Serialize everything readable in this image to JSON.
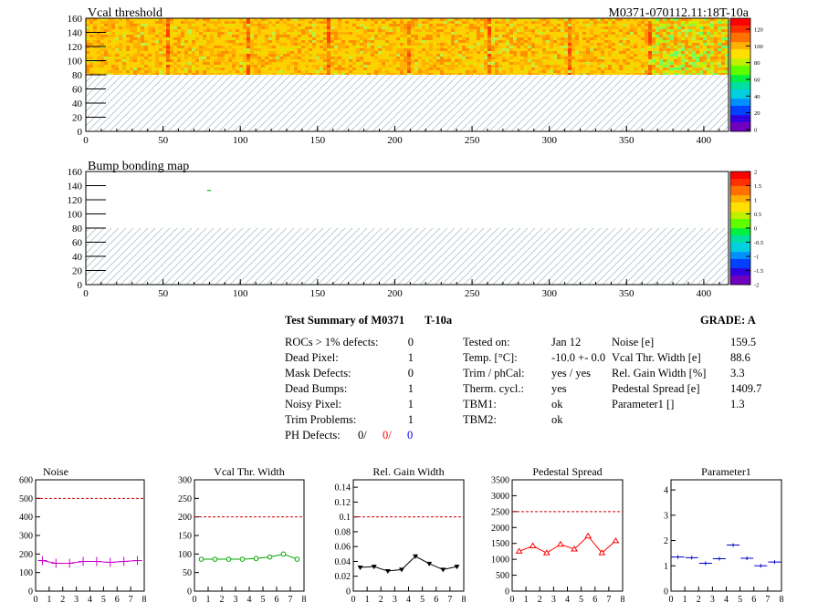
{
  "header": {
    "right_title": "M0371-070112.11:18T-10a"
  },
  "maps": [
    {
      "title": "Vcal threshold",
      "palette_ticks": [
        "0",
        "20",
        "40",
        "60",
        "80",
        "100",
        "120"
      ]
    },
    {
      "title": "Bump bonding map",
      "palette_ticks": [
        "-2",
        "-1.5",
        "-1",
        "-0.5",
        "0",
        "0.5",
        "1",
        "1.5",
        "2"
      ]
    }
  ],
  "map_axes": {
    "x_ticks": [
      "0",
      "50",
      "100",
      "150",
      "200",
      "250",
      "300",
      "350",
      "400"
    ],
    "y_ticks": [
      "0",
      "20",
      "40",
      "60",
      "80",
      "100",
      "120",
      "140",
      "160"
    ],
    "x_range": [
      0,
      416
    ],
    "y_range": [
      0,
      160
    ],
    "roc_boundaries": [
      52,
      104,
      156,
      208,
      260,
      312,
      364
    ],
    "filled_y_range": [
      80,
      160
    ]
  },
  "summary": {
    "title": "Test Summary of M0371",
    "test": "T-10a",
    "grade": "GRADE:  A",
    "left": [
      {
        "label": "ROCs > 1% defects:",
        "value": "0"
      },
      {
        "label": "Dead Pixel:",
        "value": "1"
      },
      {
        "label": "Mask Defects:",
        "value": "0"
      },
      {
        "label": "Dead Bumps:",
        "value": "1"
      },
      {
        "label": "Noisy Pixel:",
        "value": "1"
      },
      {
        "label": "Trim Problems:",
        "value": "1"
      }
    ],
    "ph_defects": {
      "label": "PH Defects:",
      "v1": "0/",
      "v2": "0/",
      "v3": "0",
      "v1_color": "#000000",
      "v2_color": "#ff0000",
      "v3_color": "#0000ff"
    },
    "middle": [
      {
        "label": "Tested on:",
        "value": "Jan 12"
      },
      {
        "label": "Temp. [°C]:",
        "value": "-10.0 +- 0.0"
      },
      {
        "label": "Trim / phCal:",
        "value": "yes / yes"
      },
      {
        "label": "Therm. cycl.:",
        "value": "yes"
      },
      {
        "label": "TBM1:",
        "value": "ok"
      },
      {
        "label": "TBM2:",
        "value": "ok"
      }
    ],
    "right": [
      {
        "label": "Noise [e]",
        "value": "159.5"
      },
      {
        "label": "Vcal Thr. Width [e]",
        "value": "88.6"
      },
      {
        "label": "Rel. Gain Width [%]",
        "value": "3.3"
      },
      {
        "label": "Pedestal Spread [e]",
        "value": "1409.7"
      },
      {
        "label": "Parameter1 []",
        "value": "1.3"
      }
    ]
  },
  "chart_data": [
    {
      "type": "line",
      "title": "",
      "xlabel": "",
      "ylabel": "",
      "panel_label": "Noise",
      "x": [
        0,
        1,
        2,
        3,
        4,
        5,
        6,
        7
      ],
      "values": [
        165,
        150,
        150,
        160,
        160,
        155,
        160,
        165
      ],
      "ylim": [
        0,
        600
      ],
      "cut": 500,
      "y_ticks": [
        "0",
        "100",
        "200",
        "300",
        "400",
        "500",
        "600"
      ],
      "color": "#cc00cc",
      "marker": "cross"
    },
    {
      "type": "line",
      "title": "",
      "xlabel": "",
      "ylabel": "",
      "panel_label": "Vcal Thr. Width",
      "x": [
        0,
        1,
        2,
        3,
        4,
        5,
        6,
        7
      ],
      "values": [
        86,
        86,
        86,
        86,
        88,
        92,
        100,
        86
      ],
      "ylim": [
        0,
        300
      ],
      "cut": 200,
      "y_ticks": [
        "0",
        "50",
        "100",
        "150",
        "200",
        "250",
        "300"
      ],
      "color": "#00aa00",
      "marker": "circle"
    },
    {
      "type": "line",
      "title": "",
      "xlabel": "",
      "ylabel": "",
      "panel_label": "Rel. Gain Width",
      "x": [
        0,
        1,
        2,
        3,
        4,
        5,
        6,
        7
      ],
      "values": [
        0.032,
        0.033,
        0.027,
        0.029,
        0.047,
        0.037,
        0.029,
        0.033
      ],
      "ylim": [
        0,
        0.15
      ],
      "cut": 0.1,
      "y_ticks": [
        "0",
        "0.02",
        "0.04",
        "0.06",
        "0.08",
        "0.1",
        "0.12",
        "0.14"
      ],
      "color": "#000000",
      "marker": "triangle-down"
    },
    {
      "type": "line",
      "title": "",
      "xlabel": "",
      "ylabel": "",
      "panel_label": "Pedestal Spread",
      "x": [
        0,
        1,
        2,
        3,
        4,
        5,
        6,
        7
      ],
      "values": [
        1250,
        1420,
        1200,
        1470,
        1320,
        1730,
        1200,
        1580
      ],
      "ylim": [
        0,
        3500
      ],
      "cut": 2500,
      "y_ticks": [
        "0",
        "500",
        "1000",
        "1500",
        "2000",
        "2500",
        "3000",
        "3500"
      ],
      "color": "#ff0000",
      "marker": "triangle-up"
    },
    {
      "type": "scatter",
      "title": "",
      "xlabel": "",
      "ylabel": "",
      "panel_label": "Parameter1",
      "x": [
        0,
        1,
        2,
        3,
        4,
        5,
        6,
        7
      ],
      "values": [
        1.35,
        1.32,
        1.1,
        1.28,
        1.82,
        1.3,
        1.0,
        1.15
      ],
      "ylim": [
        0,
        4.4
      ],
      "cut": null,
      "y_ticks": [
        "0",
        "1",
        "2",
        "3",
        "4"
      ],
      "color": "#0000cc",
      "marker": "hbar"
    }
  ],
  "small_x_ticks": [
    "0",
    "1",
    "2",
    "3",
    "4",
    "5",
    "6",
    "7",
    "8"
  ]
}
